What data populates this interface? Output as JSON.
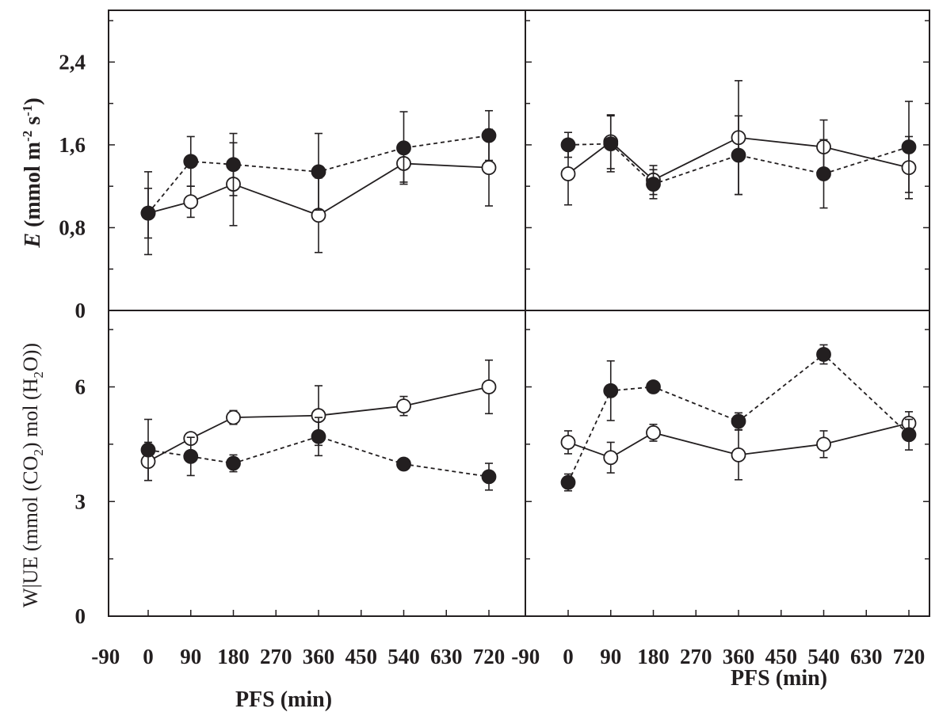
{
  "chart_data": {
    "type": "line",
    "x_ticks": [
      "-90",
      "0",
      "90",
      "180",
      "270",
      "360",
      "450",
      "540",
      "630",
      "720"
    ],
    "xlabel": "PFS (min)",
    "panels": [
      {
        "id": "top-left",
        "ylabel": "E (mmol m-2 s-1)",
        "ylim": [
          0,
          2.9
        ],
        "y_ticks": [
          "0",
          "0,8",
          "1,6",
          "2,4"
        ],
        "series": [
          {
            "marker": "open",
            "line": "solid",
            "x": [
              0,
              90,
              180,
              360,
              540,
              720
            ],
            "y": [
              0.94,
              1.05,
              1.22,
              0.92,
              1.42,
              1.38
            ],
            "err": [
              0.24,
              0.15,
              0.4,
              0.36,
              0.18,
              0.37
            ]
          },
          {
            "marker": "filled",
            "line": "dashed",
            "x": [
              0,
              90,
              180,
              360,
              540,
              720
            ],
            "y": [
              0.94,
              1.44,
              1.41,
              1.34,
              1.57,
              1.69
            ],
            "err": [
              0.4,
              0.24,
              0.3,
              0.37,
              0.35,
              0.24
            ]
          }
        ]
      },
      {
        "id": "top-right",
        "ylabel": "",
        "ylim": [
          0,
          2.9
        ],
        "y_ticks": [],
        "series": [
          {
            "marker": "open",
            "line": "solid",
            "x": [
              0,
              90,
              180,
              360,
              540,
              720
            ],
            "y": [
              1.32,
              1.63,
              1.26,
              1.67,
              1.58,
              1.38
            ],
            "err": [
              0.3,
              0.26,
              0.14,
              0.55,
              0.26,
              0.3
            ]
          },
          {
            "marker": "filled",
            "line": "dashed",
            "x": [
              0,
              90,
              180,
              360,
              540,
              720
            ],
            "y": [
              1.6,
              1.61,
              1.22,
              1.5,
              1.32,
              1.58
            ],
            "err": [
              0.12,
              0.27,
              0.14,
              0.38,
              0.33,
              0.44
            ]
          }
        ]
      },
      {
        "id": "bottom-left",
        "ylabel": "W|UE (mmol (CO2) mol (H2O))",
        "ylim": [
          0,
          8.0
        ],
        "y_ticks": [
          "0",
          "3",
          "6"
        ],
        "series": [
          {
            "marker": "open",
            "line": "solid",
            "x": [
              0,
              90,
              180,
              360,
              540,
              720
            ],
            "y": [
              4.05,
              4.65,
              5.2,
              5.25,
              5.5,
              6.0
            ],
            "err": [
              0.5,
              0.15,
              0.18,
              0.78,
              0.25,
              0.7
            ]
          },
          {
            "marker": "filled",
            "line": "dashed",
            "x": [
              0,
              90,
              180,
              360,
              540,
              720
            ],
            "y": [
              4.35,
              4.18,
              4.0,
              4.7,
              3.98,
              3.65
            ],
            "err": [
              0.8,
              0.5,
              0.22,
              0.5,
              0.15,
              0.35
            ]
          }
        ]
      },
      {
        "id": "bottom-right",
        "ylabel": "",
        "ylim": [
          0,
          8.0
        ],
        "y_ticks": [],
        "series": [
          {
            "marker": "open",
            "line": "solid",
            "x": [
              0,
              90,
              180,
              360,
              540,
              720
            ],
            "y": [
              4.55,
              4.15,
              4.8,
              4.22,
              4.5,
              5.05
            ],
            "err": [
              0.3,
              0.4,
              0.22,
              0.65,
              0.35,
              0.3
            ]
          },
          {
            "marker": "filled",
            "line": "dashed",
            "x": [
              0,
              90,
              180,
              360,
              540,
              720
            ],
            "y": [
              3.5,
              5.9,
              6.0,
              5.1,
              6.85,
              4.75
            ],
            "err": [
              0.22,
              0.78,
              0.05,
              0.22,
              0.25,
              0.4
            ]
          }
        ]
      }
    ],
    "colors": {
      "ink": "#231f20",
      "background": "#ffffff"
    }
  }
}
